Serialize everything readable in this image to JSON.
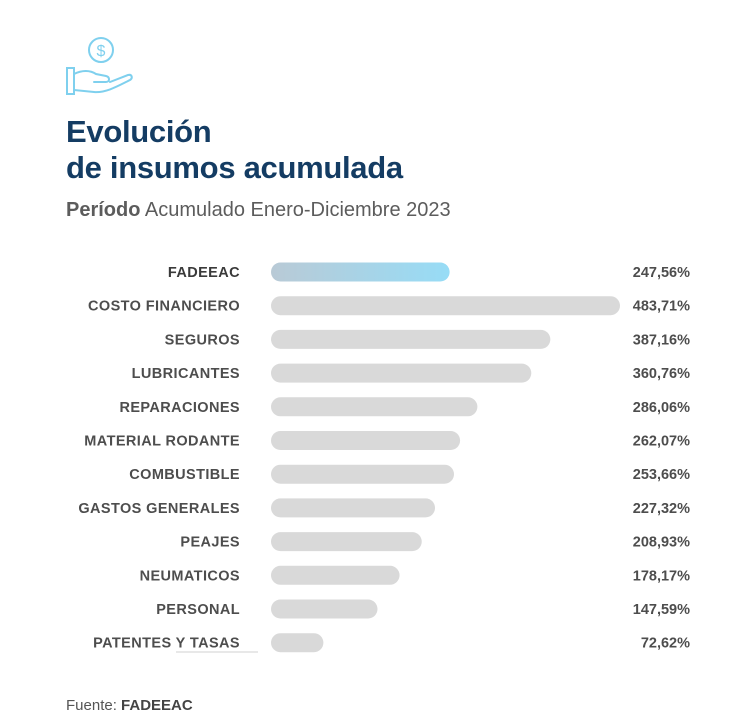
{
  "header": {
    "icon": "hand-coin-dollar-icon",
    "title_line1": "Evolución",
    "title_line2": "de insumos acumulada",
    "subtitle_bold": "Período",
    "subtitle_rest": " Acumulado Enero-Diciembre 2023"
  },
  "chart_data": {
    "type": "bar",
    "orientation": "horizontal",
    "categories": [
      "FADEEAC",
      "COSTO FINANCIERO",
      "SEGUROS",
      "LUBRICANTES",
      "REPARACIONES",
      "MATERIAL RODANTE",
      "COMBUSTIBLE",
      "GASTOS GENERALES",
      "PEAJES",
      "NEUMATICOS",
      "PERSONAL",
      "PATENTES Y TASAS"
    ],
    "values": [
      247.56,
      483.71,
      387.16,
      360.76,
      286.06,
      262.07,
      253.66,
      227.32,
      208.93,
      178.17,
      147.59,
      72.62
    ],
    "value_labels": [
      "247,56%",
      "483,71%",
      "387,16%",
      "360,76%",
      "286,06%",
      "262,07%",
      "253,66%",
      "227,32%",
      "208,93%",
      "178,17%",
      "147,59%",
      "72,62%"
    ],
    "highlight_index": 0,
    "colors": {
      "highlight_start": "#b9cad6",
      "highlight_end": "#97dcf6",
      "bar": "#d9d9d9"
    }
  },
  "footer": {
    "source_prefix": "Fuente: ",
    "source_name": "FADEEAC"
  }
}
